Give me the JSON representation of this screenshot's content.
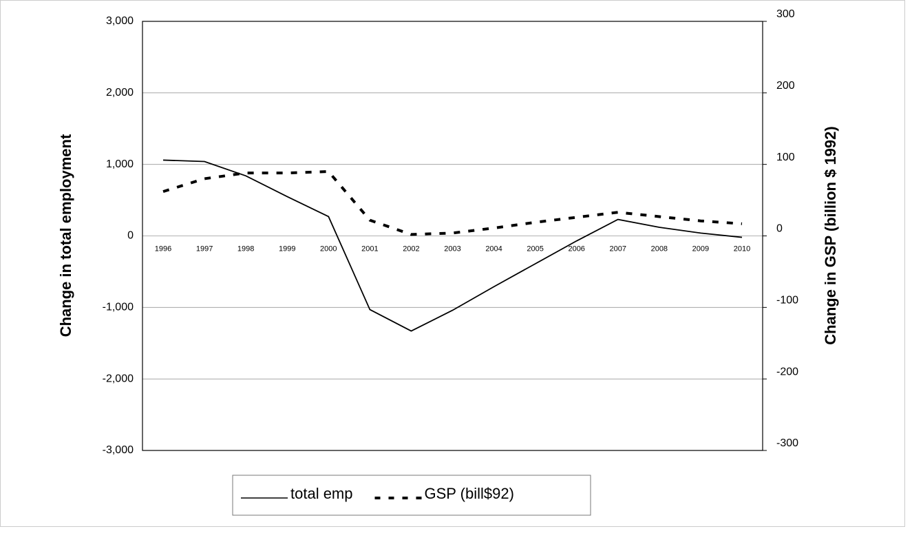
{
  "chart_data": {
    "type": "line",
    "y_label": "Change in total employment",
    "y2_label": "Change in GSP (billion $ 1992)",
    "categories": [
      "1996",
      "1997",
      "1998",
      "1999",
      "2000",
      "2001",
      "2002",
      "2003",
      "2004",
      "2005",
      "2006",
      "2007",
      "2008",
      "2009",
      "2010"
    ],
    "series": [
      {
        "name": "total emp",
        "color": "#000000",
        "style": "solid",
        "values": [
          1060,
          1040,
          840,
          550,
          270,
          -1030,
          -1330,
          -1040,
          -710,
          -390,
          -70,
          230,
          120,
          40,
          -20
        ]
      },
      {
        "name": "GSP (bill$92)",
        "color": "#000000",
        "style": "dashed",
        "axis": "y2",
        "values": [
          62,
          80,
          88,
          88,
          90,
          22,
          2,
          4,
          11,
          19,
          26,
          33,
          27,
          21,
          17
        ]
      }
    ],
    "ylim": [
      -3000,
      3000
    ],
    "yticks": [
      {
        "value": -3000,
        "label": "-3,000"
      },
      {
        "value": -2000,
        "label": "-2,000"
      },
      {
        "value": -1000,
        "label": "-1,000"
      },
      0,
      {
        "value": 1000,
        "label": "1,000"
      },
      {
        "value": 2000,
        "label": "2,000"
      },
      {
        "value": 3000,
        "label": "3,000"
      }
    ],
    "y2lim": [
      -300,
      300
    ],
    "y2ticks": [
      -300,
      -200,
      -100,
      0,
      100,
      200,
      300
    ],
    "grid": true,
    "legend": "bottom"
  }
}
